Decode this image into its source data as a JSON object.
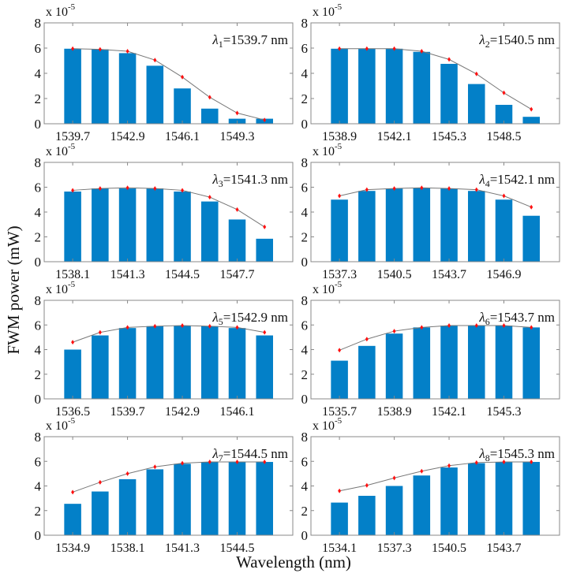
{
  "chart_data": {
    "type": "bar",
    "ylabel": "FWM power (mW)",
    "xlabel": "Wavelength (nm)",
    "ylim": [
      0,
      8
    ],
    "yticks": [
      0,
      2,
      4,
      6,
      8
    ],
    "y_exponent_base": "x 10",
    "y_exponent_power": "-5",
    "colors": {
      "bar": "#0380C8",
      "marker": "#FF1010",
      "curve": "#777777"
    },
    "panels": [
      {
        "channel_symbol": "λ",
        "channel_index": "1",
        "channel_value": "=1539.7 nm",
        "x": [
          1539.7,
          1541.3,
          1542.9,
          1544.5,
          1546.1,
          1547.7,
          1549.3,
          1550.9
        ],
        "xtick_labels": [
          "1539.7",
          "1542.9",
          "1546.1",
          "1549.3"
        ],
        "bars": [
          5.95,
          5.9,
          5.6,
          4.6,
          2.8,
          1.2,
          0.4,
          0.4
        ],
        "points": [
          5.95,
          5.9,
          5.75,
          5.05,
          3.7,
          2.1,
          0.85,
          0.3
        ]
      },
      {
        "channel_symbol": "λ",
        "channel_index": "2",
        "channel_value": "=1540.5 nm",
        "x": [
          1538.9,
          1540.5,
          1542.1,
          1543.7,
          1545.3,
          1546.9,
          1548.5,
          1550.1
        ],
        "xtick_labels": [
          "1538.9",
          "1542.1",
          "1545.3",
          "1548.5"
        ],
        "bars": [
          5.95,
          5.95,
          5.95,
          5.7,
          4.75,
          3.15,
          1.5,
          0.55
        ],
        "points": [
          5.95,
          5.95,
          5.95,
          5.75,
          5.1,
          3.95,
          2.45,
          1.15
        ]
      },
      {
        "channel_symbol": "λ",
        "channel_index": "3",
        "channel_value": "=1541.3 nm",
        "x": [
          1538.1,
          1539.7,
          1541.3,
          1542.9,
          1544.5,
          1546.1,
          1547.7,
          1549.3
        ],
        "xtick_labels": [
          "1538.1",
          "1541.3",
          "1544.5",
          "1547.7"
        ],
        "bars": [
          5.65,
          5.9,
          5.9,
          5.9,
          5.65,
          4.85,
          3.4,
          1.85
        ],
        "points": [
          5.75,
          5.9,
          5.95,
          5.9,
          5.75,
          5.2,
          4.2,
          2.8
        ]
      },
      {
        "channel_symbol": "λ",
        "channel_index": "4",
        "channel_value": "=1542.1 nm",
        "x": [
          1537.3,
          1538.9,
          1540.5,
          1542.1,
          1543.7,
          1545.3,
          1546.9,
          1548.5
        ],
        "xtick_labels": [
          "1537.3",
          "1540.5",
          "1543.7",
          "1546.9"
        ],
        "bars": [
          5.0,
          5.7,
          5.9,
          5.95,
          5.9,
          5.7,
          5.0,
          3.7
        ],
        "points": [
          5.3,
          5.8,
          5.9,
          5.95,
          5.9,
          5.8,
          5.3,
          4.4
        ]
      },
      {
        "channel_symbol": "λ",
        "channel_index": "5",
        "channel_value": "=1542.9 nm",
        "x": [
          1536.5,
          1538.1,
          1539.7,
          1541.3,
          1542.9,
          1544.5,
          1546.1,
          1547.7
        ],
        "xtick_labels": [
          "1536.5",
          "1539.7",
          "1542.9",
          "1546.1"
        ],
        "bars": [
          4.0,
          5.15,
          5.75,
          5.9,
          5.95,
          5.9,
          5.75,
          5.15
        ],
        "points": [
          4.6,
          5.4,
          5.8,
          5.9,
          5.95,
          5.9,
          5.8,
          5.4
        ]
      },
      {
        "channel_symbol": "λ",
        "channel_index": "6",
        "channel_value": "=1543.7 nm",
        "x": [
          1535.7,
          1537.3,
          1538.9,
          1540.5,
          1542.1,
          1543.7,
          1545.3,
          1546.9
        ],
        "xtick_labels": [
          "1535.7",
          "1538.9",
          "1542.1",
          "1545.3"
        ],
        "bars": [
          3.1,
          4.3,
          5.3,
          5.8,
          5.95,
          5.95,
          5.95,
          5.8
        ],
        "points": [
          3.95,
          4.85,
          5.5,
          5.8,
          5.95,
          5.95,
          5.95,
          5.8
        ]
      },
      {
        "channel_symbol": "λ",
        "channel_index": "7",
        "channel_value": "=1544.5 nm",
        "x": [
          1534.9,
          1536.5,
          1538.1,
          1539.7,
          1541.3,
          1542.9,
          1544.5,
          1546.1
        ],
        "xtick_labels": [
          "1534.9",
          "1538.1",
          "1541.3",
          "1544.5"
        ],
        "bars": [
          2.55,
          3.55,
          4.55,
          5.35,
          5.8,
          5.95,
          5.95,
          5.95
        ],
        "points": [
          3.5,
          4.3,
          5.0,
          5.55,
          5.85,
          5.95,
          5.95,
          5.95
        ]
      },
      {
        "channel_symbol": "λ",
        "channel_index": "8",
        "channel_value": "=1545.3 nm",
        "x": [
          1534.1,
          1535.7,
          1537.3,
          1538.9,
          1540.5,
          1542.1,
          1543.7,
          1545.3
        ],
        "xtick_labels": [
          "1534.1",
          "1537.3",
          "1540.5",
          "1543.7"
        ],
        "bars": [
          2.65,
          3.2,
          4.0,
          4.85,
          5.5,
          5.85,
          5.95,
          5.95
        ],
        "points": [
          3.6,
          4.05,
          4.65,
          5.2,
          5.65,
          5.9,
          5.95,
          5.95
        ]
      }
    ]
  }
}
